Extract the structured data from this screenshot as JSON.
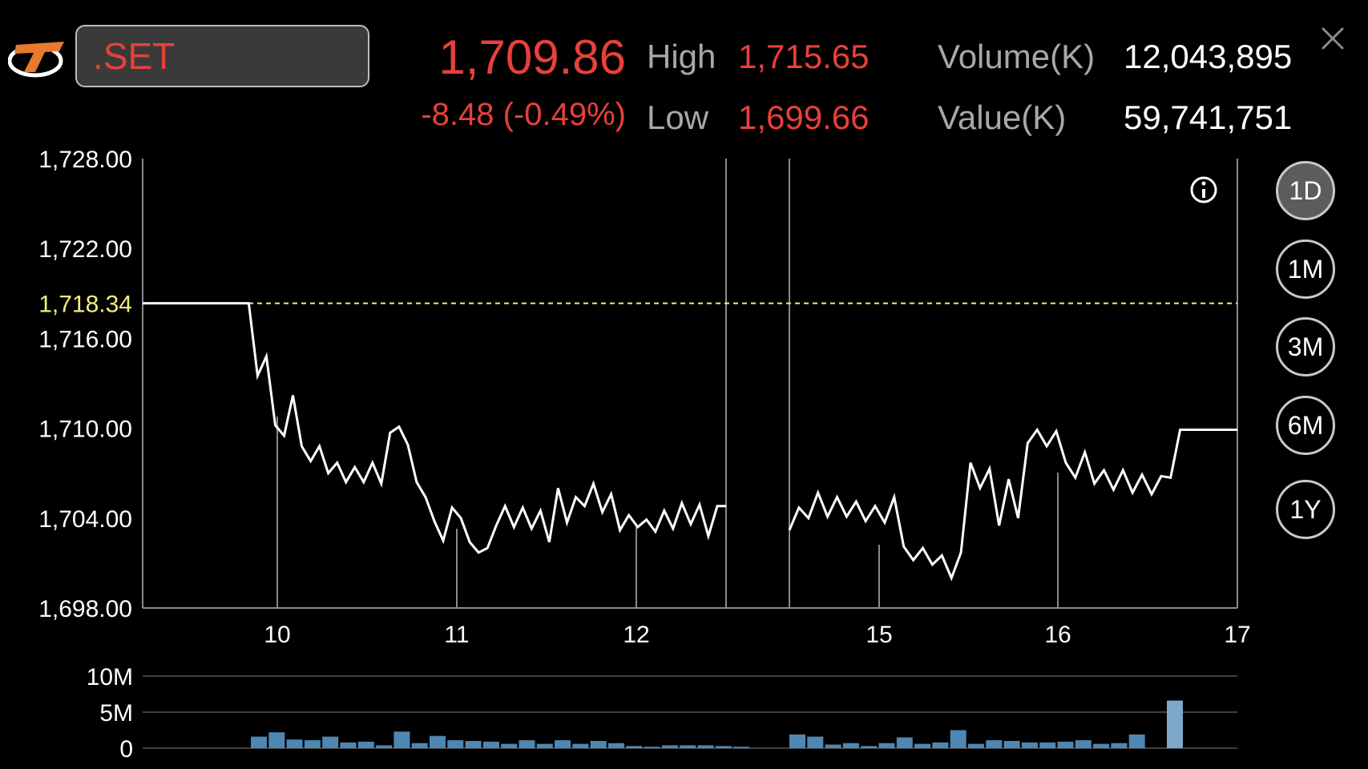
{
  "header": {
    "symbol": ".SET",
    "last": "1,709.86",
    "change": "-8.48 (-0.49%)",
    "high_label": "High",
    "high": "1,715.65",
    "low_label": "Low",
    "low": "1,699.66",
    "volume_label": "Volume(K)",
    "volume": "12,043,895",
    "value_label": "Value(K)",
    "value": "59,741,751"
  },
  "periods": [
    {
      "label": "1D",
      "active": true
    },
    {
      "label": "1M",
      "active": false
    },
    {
      "label": "3M",
      "active": false
    },
    {
      "label": "6M",
      "active": false
    },
    {
      "label": "1Y",
      "active": false
    }
  ],
  "colors": {
    "down": "#e8403a",
    "reference": "#f2ef7a",
    "price_line": "#ffffff",
    "volume_bar": "#4f87b3",
    "volume_bar_last": "#7fa8c8"
  },
  "icons": [
    "brand-logo-icon",
    "close-icon",
    "info-icon"
  ],
  "chart_data": [
    {
      "type": "line",
      "title": "",
      "xlabel": "",
      "ylabel": "",
      "ylim": [
        1698,
        1728
      ],
      "y_ticks": [
        "1,728.00",
        "1,722.00",
        "1,716.00",
        "1,710.00",
        "1,704.00",
        "1,698.00"
      ],
      "y_tick_values": [
        1728,
        1722,
        1716,
        1710,
        1704,
        1698
      ],
      "reference_line": {
        "label": "1,718.34",
        "value": 1718.34
      },
      "x_ticks": [
        "10",
        "11",
        "12",
        "15",
        "16",
        "17"
      ],
      "session_break": "between 12 and 15",
      "series": [
        {
          "name": "",
          "morning": [
            1718.34,
            1718.34,
            1718.34,
            1718.34,
            1718.34,
            1718.34,
            1718.34,
            1718.34,
            1718.34,
            1718.34,
            1718.34,
            1718.34,
            1718.34,
            1713.5,
            1714.8,
            1710.2,
            1709.5,
            1712.2,
            1708.8,
            1707.8,
            1708.8,
            1707,
            1707.7,
            1706.4,
            1707.4,
            1706.4,
            1707.7,
            1706.3,
            1709.7,
            1710.1,
            1708.9,
            1706.4,
            1705.4,
            1703.8,
            1702.5,
            1704.7,
            1704,
            1702.4,
            1701.7,
            1702,
            1703.5,
            1704.8,
            1703.4,
            1704.7,
            1703.3,
            1704.5,
            1702.4,
            1706,
            1703.7,
            1705.4,
            1704.8,
            1706.3,
            1704.4,
            1705.6,
            1703.2,
            1704.2,
            1703.4,
            1703.9,
            1703.1,
            1704.5,
            1703.3,
            1705,
            1703.6,
            1704.9,
            1702.8,
            1704.8,
            1704.8
          ],
          "afternoon": [
            1703.2,
            1704.7,
            1704,
            1705.7,
            1704.1,
            1705.4,
            1704.1,
            1705.1,
            1703.8,
            1704.8,
            1703.7,
            1705.4,
            1702.1,
            1701.2,
            1702,
            1700.9,
            1701.5,
            1700,
            1701.7,
            1707.7,
            1706,
            1707.3,
            1703.5,
            1706.6,
            1704,
            1709,
            1709.9,
            1708.8,
            1709.8,
            1707.7,
            1706.7,
            1708.4,
            1706.3,
            1707.2,
            1705.9,
            1707.2,
            1705.7,
            1706.9,
            1705.6,
            1706.8,
            1706.7,
            1709.9,
            1709.9,
            1709.9,
            1709.9,
            1709.9,
            1709.9,
            1709.9
          ]
        }
      ]
    },
    {
      "type": "bar",
      "title": "",
      "ylabel": "",
      "ylim": [
        0,
        10
      ],
      "y_ticks": [
        "10M",
        "5M",
        "0"
      ],
      "y_tick_values": [
        10,
        5,
        0
      ],
      "units": "M",
      "series": [
        {
          "name": "",
          "morning": [
            1.6,
            2.2,
            1.2,
            1.1,
            1.6,
            0.8,
            0.9,
            0.4,
            2.3,
            0.7,
            1.7,
            1.1,
            1.0,
            0.9,
            0.6,
            1.1,
            0.6,
            1.1,
            0.6,
            1.0,
            0.7,
            0.3,
            0.2,
            0.4,
            0.4,
            0.4,
            0.3,
            0.2
          ],
          "afternoon": [
            1.9,
            1.6,
            0.5,
            0.7,
            0.3,
            0.7,
            1.5,
            0.6,
            0.8,
            2.5,
            0.6,
            1.1,
            1.0,
            0.8,
            0.8,
            0.9,
            1.1,
            0.6,
            0.7,
            1.9,
            6.6
          ]
        }
      ]
    }
  ]
}
